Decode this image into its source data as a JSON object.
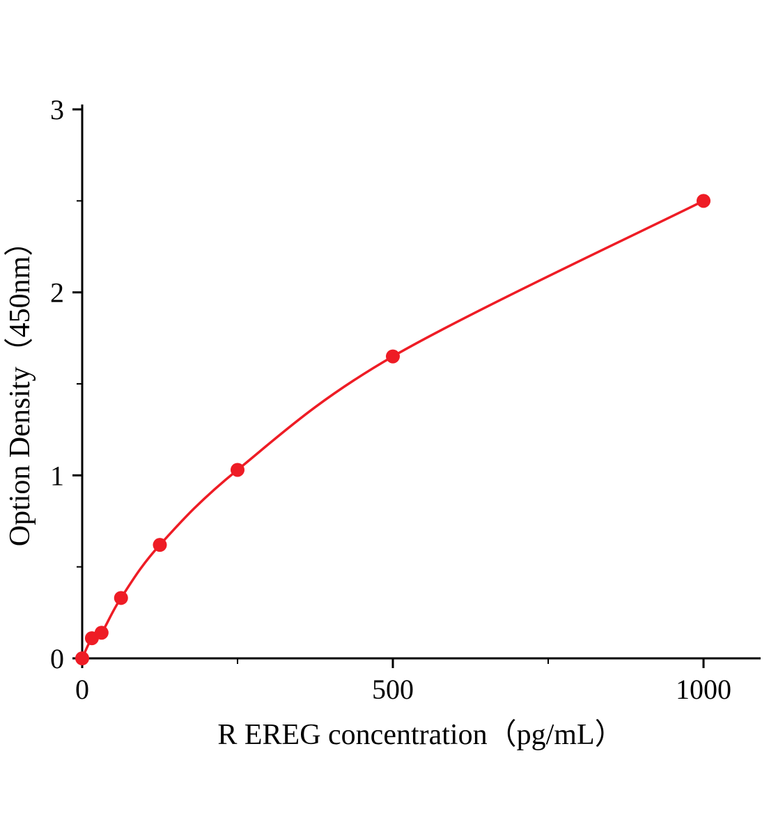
{
  "chart_data": {
    "type": "line",
    "title": "",
    "xlabel": "R EREG concentration（pg/mL）",
    "ylabel": "Option Density（450nm）",
    "x": [
      0,
      15.6,
      31.2,
      62.5,
      125,
      250,
      500,
      1000
    ],
    "y": [
      0,
      0.11,
      0.14,
      0.33,
      0.62,
      1.03,
      1.65,
      2.5
    ],
    "xlim": [
      0,
      1090
    ],
    "ylim": [
      0,
      3
    ],
    "x_ticks_major": [
      0,
      500,
      1000
    ],
    "x_ticks_minor": [
      250,
      750
    ],
    "y_ticks_major": [
      0,
      1,
      2,
      3
    ],
    "y_ticks_minor": [
      0.5,
      1.5,
      2.5
    ],
    "grid": false,
    "legend": "none",
    "line_color": "#ee1c25",
    "marker_color": "#ee1c25",
    "axis_color": "#000000"
  }
}
